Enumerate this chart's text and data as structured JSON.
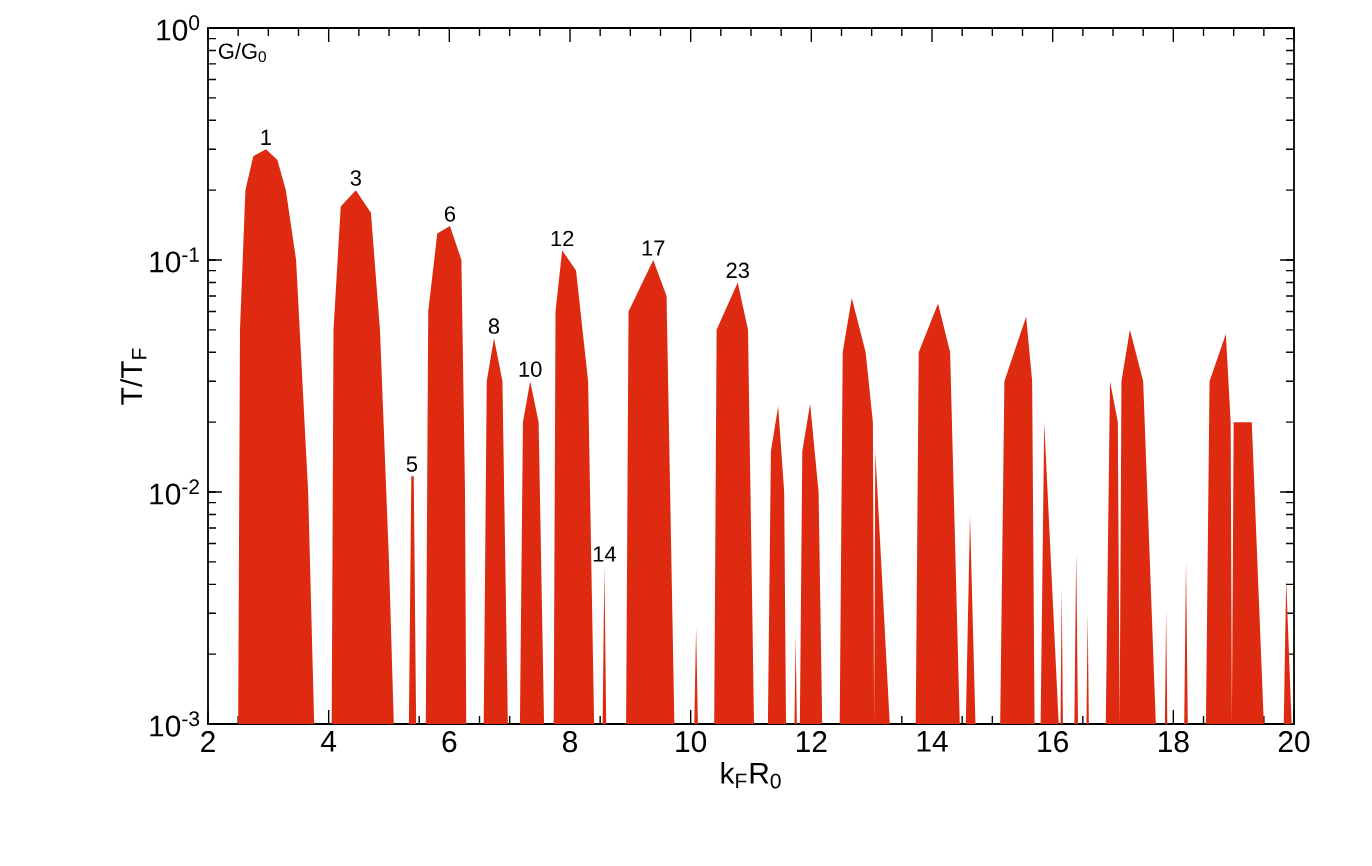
{
  "chart_data": {
    "type": "area",
    "xlabel": "k$_{F}$R$_{0}$",
    "ylabel": "T/T$_{F}$",
    "log": "y",
    "xlim": [
      2,
      20
    ],
    "xticks": [
      2,
      4,
      6,
      8,
      10,
      12,
      14,
      16,
      18,
      20
    ],
    "ylim": [
      0.001,
      1
    ],
    "yticks": [
      {
        "value": 0.001,
        "label": "10$^{-3}$"
      },
      {
        "value": 0.01,
        "label": "10$^{-2}$"
      },
      {
        "value": 0.1,
        "label": "10$^{-1}$"
      },
      {
        "value": 1,
        "label": "10$^{0}$"
      }
    ],
    "series": [
      {
        "color": "#dd2a10",
        "x": [
          2.5,
          2.53,
          2.62,
          2.75,
          2.96,
          3.15,
          3.29,
          3.46,
          3.66,
          3.76,
          4.05,
          4.08,
          4.2,
          4.45,
          4.7,
          4.85,
          5.0,
          5.08,
          5.33,
          5.37,
          5.41,
          5.45,
          5.61,
          5.65,
          5.8,
          6.01,
          6.2,
          6.26,
          6.28,
          6.57,
          6.62,
          6.74,
          6.88,
          6.97,
          7.17,
          7.22,
          7.34,
          7.48,
          7.57,
          7.73,
          7.76,
          7.87,
          8.1,
          8.3,
          8.4,
          8.54,
          8.57,
          8.6,
          8.93,
          8.97,
          9.38,
          9.6,
          9.73,
          10.06,
          10.09,
          10.12,
          10.39,
          10.43,
          10.78,
          10.95,
          11.05,
          11.28,
          11.33,
          11.45,
          11.55,
          11.58,
          11.72,
          11.74,
          11.76,
          11.81,
          11.85,
          11.98,
          12.12,
          12.18,
          12.47,
          12.52,
          12.67,
          12.9,
          13.02,
          13.04,
          13.06,
          13.3,
          13.73,
          13.78,
          14.1,
          14.3,
          14.46,
          14.56,
          14.63,
          14.72,
          15.13,
          15.2,
          15.56,
          15.66,
          15.7,
          15.8,
          15.86,
          16.1,
          16.13,
          16.15,
          16.17,
          16.36,
          16.39,
          16.42,
          16.56,
          16.58,
          16.6,
          16.88,
          16.95,
          17.08,
          17.11,
          17.14,
          17.28,
          17.5,
          17.71,
          17.86,
          17.88,
          17.9,
          18.18,
          18.21,
          18.24,
          18.54,
          18.6,
          18.87,
          18.95,
          18.97,
          19.0,
          19.3,
          19.5,
          19.83,
          19.87,
          19.96
        ],
        "values": [
          0.001,
          0.05,
          0.2,
          0.28,
          0.3,
          0.27,
          0.2,
          0.1,
          0.01,
          0.001,
          0.001,
          0.05,
          0.17,
          0.2,
          0.16,
          0.05,
          0.005,
          0.001,
          0.001,
          0.0117,
          0.0117,
          0.001,
          0.001,
          0.06,
          0.13,
          0.14,
          0.1,
          0.01,
          0.001,
          0.001,
          0.03,
          0.046,
          0.03,
          0.001,
          0.001,
          0.02,
          0.03,
          0.02,
          0.001,
          0.001,
          0.06,
          0.11,
          0.09,
          0.03,
          0.001,
          0.001,
          0.0048,
          0.001,
          0.001,
          0.06,
          0.1,
          0.07,
          0.001,
          0.001,
          0.0026,
          0.001,
          0.001,
          0.05,
          0.08,
          0.05,
          0.001,
          0.001,
          0.015,
          0.0234,
          0.01,
          0.001,
          0.001,
          0.0024,
          0.001,
          0.001,
          0.015,
          0.024,
          0.01,
          0.001,
          0.001,
          0.04,
          0.0686,
          0.04,
          0.02,
          0.001,
          0.015,
          0.001,
          0.001,
          0.04,
          0.065,
          0.04,
          0.001,
          0.001,
          0.0079,
          0.001,
          0.001,
          0.03,
          0.057,
          0.03,
          0.001,
          0.001,
          0.02,
          0.001,
          0.001,
          0.0039,
          0.001,
          0.001,
          0.0055,
          0.001,
          0.001,
          0.003,
          0.001,
          0.001,
          0.03,
          0.02,
          0.001,
          0.03,
          0.05,
          0.03,
          0.001,
          0.001,
          0.0031,
          0.001,
          0.001,
          0.005,
          0.001,
          0.001,
          0.03,
          0.048,
          0.02,
          0.001,
          0.02,
          0.02,
          0.001,
          0.001,
          0.0042,
          0.001
        ]
      }
    ],
    "annotations": [
      "G/G$_{0}$",
      {
        "text": "1",
        "x": 2.96,
        "y": 0.3
      },
      {
        "text": "3",
        "x": 4.45,
        "y": 0.2
      },
      {
        "text": "5",
        "x": 5.38,
        "y": 0.0117
      },
      {
        "text": "6",
        "x": 6.01,
        "y": 0.14
      },
      {
        "text": "8",
        "x": 6.74,
        "y": 0.046
      },
      {
        "text": "10",
        "x": 7.34,
        "y": 0.03
      },
      {
        "text": "12",
        "x": 7.87,
        "y": 0.11
      },
      {
        "text": "14",
        "x": 8.57,
        "y": 0.0048
      },
      {
        "text": "17",
        "x": 9.38,
        "y": 0.1
      },
      {
        "text": "23",
        "x": 10.78,
        "y": 0.08
      }
    ]
  }
}
